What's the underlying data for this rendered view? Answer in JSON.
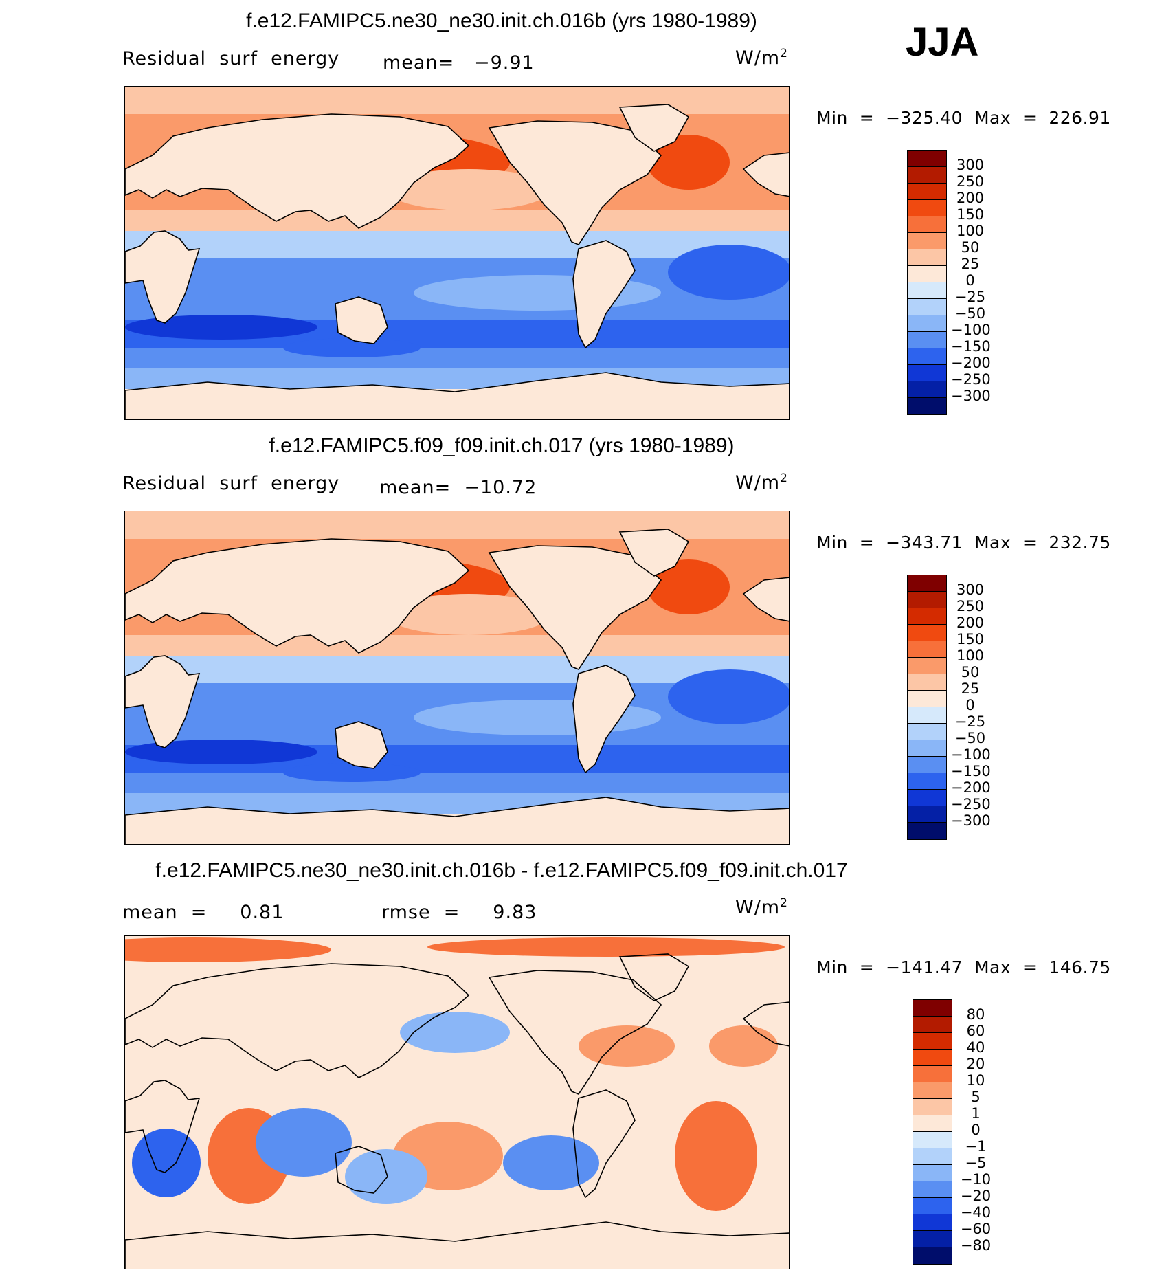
{
  "season_label": "JJA",
  "panels": [
    {
      "title": "f.e12.FAMIPC5.ne30_ne30.init.ch.016b (yrs 1980-1989)",
      "left_label": "Residual  surf  energy",
      "mid_label": "mean=   −9.91",
      "units_base": "W/m",
      "units_exp": "2",
      "min_text": "Min  =  −325.40",
      "max_text": "Max  =  226.91",
      "colorbar": {
        "levels": [
          "300",
          "250",
          "200",
          "150",
          "100",
          "50",
          "25",
          "0",
          "−25",
          "−50",
          "−100",
          "−150",
          "−200",
          "−250",
          "−300"
        ],
        "colors": [
          "#7f0000",
          "#b31b00",
          "#d42b00",
          "#f04a10",
          "#f7703a",
          "#fa9a6a",
          "#fcc6a6",
          "#fde8d8",
          "#d6e9fb",
          "#b2d2fa",
          "#8ab6f7",
          "#5a8ff2",
          "#2d63ee",
          "#1037d6",
          "#0420a6",
          "#000d6b"
        ]
      },
      "map_style": "single"
    },
    {
      "title": "f.e12.FAMIPC5.f09_f09.init.ch.017 (yrs 1980-1989)",
      "left_label": "Residual  surf  energy",
      "mid_label": "mean=  −10.72",
      "units_base": "W/m",
      "units_exp": "2",
      "min_text": "Min  =  −343.71",
      "max_text": "Max  =  232.75",
      "colorbar": {
        "levels": [
          "300",
          "250",
          "200",
          "150",
          "100",
          "50",
          "25",
          "0",
          "−25",
          "−50",
          "−100",
          "−150",
          "−200",
          "−250",
          "−300"
        ],
        "colors": [
          "#7f0000",
          "#b31b00",
          "#d42b00",
          "#f04a10",
          "#f7703a",
          "#fa9a6a",
          "#fcc6a6",
          "#fde8d8",
          "#d6e9fb",
          "#b2d2fa",
          "#8ab6f7",
          "#5a8ff2",
          "#2d63ee",
          "#1037d6",
          "#0420a6",
          "#000d6b"
        ]
      },
      "map_style": "single"
    },
    {
      "title": "f.e12.FAMIPC5.ne30_ne30.init.ch.016b - f.e12.FAMIPC5.f09_f09.init.ch.017",
      "left_label": "mean  =     0.81",
      "mid_label": "rmse  =     9.83",
      "units_base": "W/m",
      "units_exp": "2",
      "min_text": "Min  =  −141.47",
      "max_text": "Max  =  146.75",
      "colorbar": {
        "levels": [
          "80",
          "60",
          "40",
          "20",
          "10",
          "5",
          "1",
          "0",
          "−1",
          "−5",
          "−10",
          "−20",
          "−40",
          "−60",
          "−80"
        ],
        "colors": [
          "#7f0000",
          "#b31b00",
          "#d42b00",
          "#f04a10",
          "#f7703a",
          "#fa9a6a",
          "#fcc6a6",
          "#fde8d8",
          "#d6e9fb",
          "#b2d2fa",
          "#8ab6f7",
          "#5a8ff2",
          "#2d63ee",
          "#1037d6",
          "#0420a6",
          "#000d6b"
        ]
      },
      "map_style": "diff"
    }
  ],
  "chart_data": [
    {
      "type": "heatmap",
      "title": "f.e12.FAMIPC5.ne30_ne30.init.ch.016b (yrs 1980-1989)",
      "variable": "Residual surf energy",
      "units": "W/m2",
      "mean": -9.91,
      "min": -325.4,
      "max": 226.91,
      "contour_levels": [
        -300,
        -250,
        -200,
        -150,
        -100,
        -50,
        -25,
        0,
        25,
        50,
        100,
        150,
        200,
        250,
        300
      ]
    },
    {
      "type": "heatmap",
      "title": "f.e12.FAMIPC5.f09_f09.init.ch.017 (yrs 1980-1989)",
      "variable": "Residual surf energy",
      "units": "W/m2",
      "mean": -10.72,
      "min": -343.71,
      "max": 232.75,
      "contour_levels": [
        -300,
        -250,
        -200,
        -150,
        -100,
        -50,
        -25,
        0,
        25,
        50,
        100,
        150,
        200,
        250,
        300
      ]
    },
    {
      "type": "heatmap",
      "title": "f.e12.FAMIPC5.ne30_ne30.init.ch.016b - f.e12.FAMIPC5.f09_f09.init.ch.017",
      "units": "W/m2",
      "mean": 0.81,
      "rmse": 9.83,
      "min": -141.47,
      "max": 146.75,
      "contour_levels": [
        -80,
        -60,
        -40,
        -20,
        -10,
        -5,
        -1,
        0,
        1,
        5,
        10,
        20,
        40,
        60,
        80
      ]
    }
  ]
}
